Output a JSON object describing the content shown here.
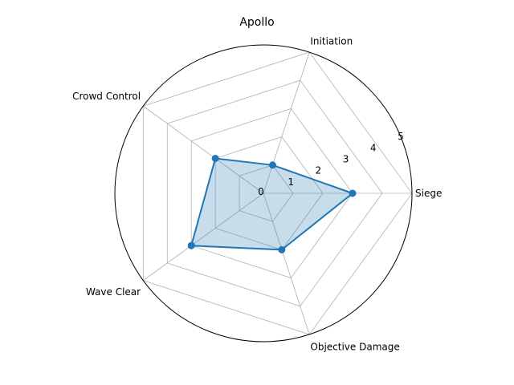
{
  "chart_data": {
    "type": "radar",
    "title": "Apollo",
    "categories": [
      "Siege",
      "Initiation",
      "Crowd Control",
      "Wave Clear",
      "Objective Damage"
    ],
    "series": [
      {
        "values": [
          3,
          1,
          2,
          3,
          2
        ]
      }
    ],
    "rlim": [
      0,
      5
    ],
    "r_ticks": [
      "0",
      "1",
      "2",
      "3",
      "4",
      "5"
    ],
    "grid": true,
    "colors": {
      "line": "#1f77b4",
      "fill": "#1f77b4",
      "grid": "#b0b0b0"
    }
  }
}
